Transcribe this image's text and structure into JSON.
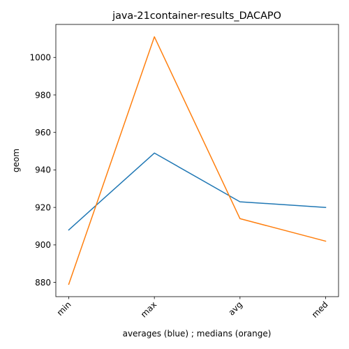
{
  "chart_data": {
    "type": "line",
    "title": "java-21container-results_DACAPO",
    "xlabel": "averages (blue) ; medians (orange)",
    "ylabel": "geom",
    "categories": [
      "min",
      "max",
      "avg",
      "med"
    ],
    "ylim": [
      872.4,
      1017.6
    ],
    "yticks": [
      880,
      900,
      920,
      940,
      960,
      980,
      1000
    ],
    "grid": false,
    "legend": "none",
    "series": [
      {
        "values": [
          908.0,
          949.0,
          923.0,
          920.0
        ],
        "color": "#1f77b4"
      },
      {
        "values": [
          879.0,
          1011.0,
          914.0,
          902.0
        ],
        "color": "#ff7f0e"
      }
    ]
  }
}
